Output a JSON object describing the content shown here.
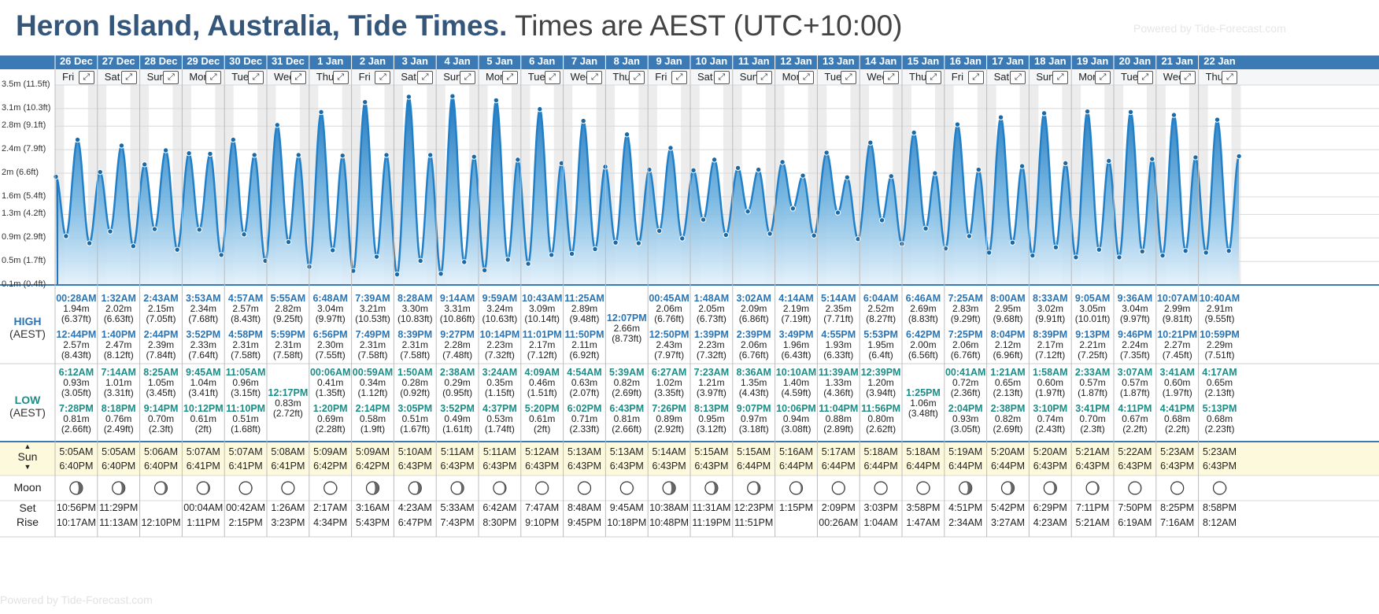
{
  "header": {
    "place_title": "Heron Island, Australia, Tide Times.",
    "tz_text": "Times are AEST (UTC+10:00)",
    "watermark": "Powered by Tide-Forecast.com"
  },
  "row_labels": {
    "high_title": "HIGH",
    "high_tz": "(AEST)",
    "low_title": "LOW",
    "low_tz": "(AEST)",
    "sun": "Sun",
    "moon": "Moon",
    "set": "Set",
    "rise": "Rise"
  },
  "footer": {
    "watermark": "Powered by Tide-Forecast.com"
  },
  "colors": {
    "header_blue": "#3c7ab5",
    "curve_blue": "#2280c8",
    "high_text": "#2d74b0",
    "low_text": "#1e8c86",
    "sun_row_bg": "#fdf9dd"
  },
  "chart_data": {
    "type": "area",
    "title": "Heron Island, Australia, Tide Times.",
    "ylabel": "",
    "y_ticks": [
      "0.1m (0.4ft)",
      "0.5m (1.7ft)",
      "0.9m (2.9ft)",
      "1.3m (4.2ft)",
      "1.6m (5.4ft)",
      "2m (6.6ft)",
      "2.4m (7.9ft)",
      "2.8m (9.1ft)",
      "3.1m (10.3ft)",
      "3.5m (11.5ft)"
    ],
    "y_tick_values": [
      0.1,
      0.5,
      0.9,
      1.3,
      1.6,
      2.0,
      2.4,
      2.8,
      3.1,
      3.5
    ],
    "ylim": [
      0.1,
      3.5
    ],
    "days": [
      {
        "date": "26 Dec",
        "dow": "Fri",
        "high": [
          [
            "00:28AM",
            "1.94m",
            "(6.37ft)"
          ],
          [
            "12:44PM",
            "2.57m",
            "(8.43ft)"
          ]
        ],
        "low": [
          [
            "6:12AM",
            "0.93m",
            "(3.05ft)"
          ],
          [
            "7:28PM",
            "0.81m",
            "(2.66ft)"
          ]
        ],
        "sunrise": "5:05AM",
        "sunset": "6:40PM",
        "moonset": "10:56PM",
        "moonrise": "10:17AM"
      },
      {
        "date": "27 Dec",
        "dow": "Sat",
        "high": [
          [
            "1:32AM",
            "2.02m",
            "(6.63ft)"
          ],
          [
            "1:40PM",
            "2.47m",
            "(8.12ft)"
          ]
        ],
        "low": [
          [
            "7:14AM",
            "1.01m",
            "(3.31ft)"
          ],
          [
            "8:18PM",
            "0.76m",
            "(2.49ft)"
          ]
        ],
        "sunrise": "5:05AM",
        "sunset": "6:40PM",
        "moonset": "11:29PM",
        "moonrise": "11:13AM"
      },
      {
        "date": "28 Dec",
        "dow": "Sun",
        "high": [
          [
            "2:43AM",
            "2.15m",
            "(7.05ft)"
          ],
          [
            "2:44PM",
            "2.39m",
            "(7.84ft)"
          ]
        ],
        "low": [
          [
            "8:25AM",
            "1.05m",
            "(3.45ft)"
          ],
          [
            "9:14PM",
            "0.70m",
            "(2.3ft)"
          ]
        ],
        "sunrise": "5:06AM",
        "sunset": "6:40PM",
        "moonset": "",
        "moonrise": "12:10PM"
      },
      {
        "date": "29 Dec",
        "dow": "Mon",
        "high": [
          [
            "3:53AM",
            "2.34m",
            "(7.68ft)"
          ],
          [
            "3:52PM",
            "2.33m",
            "(7.64ft)"
          ]
        ],
        "low": [
          [
            "9:45AM",
            "1.04m",
            "(3.41ft)"
          ],
          [
            "10:12PM",
            "0.61m",
            "(2ft)"
          ]
        ],
        "sunrise": "5:07AM",
        "sunset": "6:41PM",
        "moonset": "00:04AM",
        "moonrise": "1:11PM"
      },
      {
        "date": "30 Dec",
        "dow": "Tue",
        "high": [
          [
            "4:57AM",
            "2.57m",
            "(8.43ft)"
          ],
          [
            "4:58PM",
            "2.31m",
            "(7.58ft)"
          ]
        ],
        "low": [
          [
            "11:05AM",
            "0.96m",
            "(3.15ft)"
          ],
          [
            "11:10PM",
            "0.51m",
            "(1.68ft)"
          ]
        ],
        "sunrise": "5:07AM",
        "sunset": "6:41PM",
        "moonset": "00:42AM",
        "moonrise": "2:15PM"
      },
      {
        "date": "31 Dec",
        "dow": "Wed",
        "high": [
          [
            "5:55AM",
            "2.82m",
            "(9.25ft)"
          ],
          [
            "5:59PM",
            "2.31m",
            "(7.58ft)"
          ]
        ],
        "low": [
          [
            "12:17PM",
            "0.83m",
            "(2.72ft)"
          ]
        ],
        "sunrise": "5:08AM",
        "sunset": "6:41PM",
        "moonset": "1:26AM",
        "moonrise": "3:23PM"
      },
      {
        "date": "1 Jan",
        "dow": "Thu",
        "high": [
          [
            "6:48AM",
            "3.04m",
            "(9.97ft)"
          ],
          [
            "6:56PM",
            "2.30m",
            "(7.55ft)"
          ]
        ],
        "low": [
          [
            "00:06AM",
            "0.41m",
            "(1.35ft)"
          ],
          [
            "1:20PM",
            "0.69m",
            "(2.28ft)"
          ]
        ],
        "sunrise": "5:09AM",
        "sunset": "6:42PM",
        "moonset": "2:17AM",
        "moonrise": "4:34PM"
      },
      {
        "date": "2 Jan",
        "dow": "Fri",
        "high": [
          [
            "7:39AM",
            "3.21m",
            "(10.53ft)"
          ],
          [
            "7:49PM",
            "2.31m",
            "(7.58ft)"
          ]
        ],
        "low": [
          [
            "00:59AM",
            "0.34m",
            "(1.12ft)"
          ],
          [
            "2:14PM",
            "0.58m",
            "(1.9ft)"
          ]
        ],
        "sunrise": "5:09AM",
        "sunset": "6:42PM",
        "moonset": "3:16AM",
        "moonrise": "5:43PM"
      },
      {
        "date": "3 Jan",
        "dow": "Sat",
        "high": [
          [
            "8:28AM",
            "3.30m",
            "(10.83ft)"
          ],
          [
            "8:39PM",
            "2.31m",
            "(7.58ft)"
          ]
        ],
        "low": [
          [
            "1:50AM",
            "0.28m",
            "(0.92ft)"
          ],
          [
            "3:05PM",
            "0.51m",
            "(1.67ft)"
          ]
        ],
        "sunrise": "5:10AM",
        "sunset": "6:43PM",
        "moonset": "4:23AM",
        "moonrise": "6:47PM"
      },
      {
        "date": "4 Jan",
        "dow": "Sun",
        "high": [
          [
            "9:14AM",
            "3.31m",
            "(10.86ft)"
          ],
          [
            "9:27PM",
            "2.28m",
            "(7.48ft)"
          ]
        ],
        "low": [
          [
            "2:38AM",
            "0.29m",
            "(0.95ft)"
          ],
          [
            "3:52PM",
            "0.49m",
            "(1.61ft)"
          ]
        ],
        "sunrise": "5:11AM",
        "sunset": "6:43PM",
        "moonset": "5:33AM",
        "moonrise": "7:43PM"
      },
      {
        "date": "5 Jan",
        "dow": "Mon",
        "high": [
          [
            "9:59AM",
            "3.24m",
            "(10.63ft)"
          ],
          [
            "10:14PM",
            "2.23m",
            "(7.32ft)"
          ]
        ],
        "low": [
          [
            "3:24AM",
            "0.35m",
            "(1.15ft)"
          ],
          [
            "4:37PM",
            "0.53m",
            "(1.74ft)"
          ]
        ],
        "sunrise": "5:11AM",
        "sunset": "6:43PM",
        "moonset": "6:42AM",
        "moonrise": "8:30PM"
      },
      {
        "date": "6 Jan",
        "dow": "Tue",
        "high": [
          [
            "10:43AM",
            "3.09m",
            "(10.14ft)"
          ],
          [
            "11:01PM",
            "2.17m",
            "(7.12ft)"
          ]
        ],
        "low": [
          [
            "4:09AM",
            "0.46m",
            "(1.51ft)"
          ],
          [
            "5:20PM",
            "0.61m",
            "(2ft)"
          ]
        ],
        "sunrise": "5:12AM",
        "sunset": "6:43PM",
        "moonset": "7:47AM",
        "moonrise": "9:10PM"
      },
      {
        "date": "7 Jan",
        "dow": "Wed",
        "high": [
          [
            "11:25AM",
            "2.89m",
            "(9.48ft)"
          ],
          [
            "11:50PM",
            "2.11m",
            "(6.92ft)"
          ]
        ],
        "low": [
          [
            "4:54AM",
            "0.63m",
            "(2.07ft)"
          ],
          [
            "6:02PM",
            "0.71m",
            "(2.33ft)"
          ]
        ],
        "sunrise": "5:13AM",
        "sunset": "6:43PM",
        "moonset": "8:48AM",
        "moonrise": "9:45PM"
      },
      {
        "date": "8 Jan",
        "dow": "Thu",
        "high": [
          [
            "12:07PM",
            "2.66m",
            "(8.73ft)"
          ]
        ],
        "low": [
          [
            "5:39AM",
            "0.82m",
            "(2.69ft)"
          ],
          [
            "6:43PM",
            "0.81m",
            "(2.66ft)"
          ]
        ],
        "sunrise": "5:13AM",
        "sunset": "6:43PM",
        "moonset": "9:45AM",
        "moonrise": "10:18PM"
      },
      {
        "date": "9 Jan",
        "dow": "Fri",
        "high": [
          [
            "00:45AM",
            "2.06m",
            "(6.76ft)"
          ],
          [
            "12:50PM",
            "2.43m",
            "(7.97ft)"
          ]
        ],
        "low": [
          [
            "6:27AM",
            "1.02m",
            "(3.35ft)"
          ],
          [
            "7:26PM",
            "0.89m",
            "(2.92ft)"
          ]
        ],
        "sunrise": "5:14AM",
        "sunset": "6:43PM",
        "moonset": "10:38AM",
        "moonrise": "10:48PM"
      },
      {
        "date": "10 Jan",
        "dow": "Sat",
        "high": [
          [
            "1:48AM",
            "2.05m",
            "(6.73ft)"
          ],
          [
            "1:39PM",
            "2.23m",
            "(7.32ft)"
          ]
        ],
        "low": [
          [
            "7:23AM",
            "1.21m",
            "(3.97ft)"
          ],
          [
            "8:13PM",
            "0.95m",
            "(3.12ft)"
          ]
        ],
        "sunrise": "5:15AM",
        "sunset": "6:43PM",
        "moonset": "11:31AM",
        "moonrise": "11:19PM"
      },
      {
        "date": "11 Jan",
        "dow": "Sun",
        "high": [
          [
            "3:02AM",
            "2.09m",
            "(6.86ft)"
          ],
          [
            "2:39PM",
            "2.06m",
            "(6.76ft)"
          ]
        ],
        "low": [
          [
            "8:36AM",
            "1.35m",
            "(4.43ft)"
          ],
          [
            "9:07PM",
            "0.97m",
            "(3.18ft)"
          ]
        ],
        "sunrise": "5:15AM",
        "sunset": "6:44PM",
        "moonset": "12:23PM",
        "moonrise": "11:51PM"
      },
      {
        "date": "12 Jan",
        "dow": "Mon",
        "high": [
          [
            "4:14AM",
            "2.19m",
            "(7.19ft)"
          ],
          [
            "3:49PM",
            "1.96m",
            "(6.43ft)"
          ]
        ],
        "low": [
          [
            "10:10AM",
            "1.40m",
            "(4.59ft)"
          ],
          [
            "10:06PM",
            "0.94m",
            "(3.08ft)"
          ]
        ],
        "sunrise": "5:16AM",
        "sunset": "6:44PM",
        "moonset": "1:15PM",
        "moonrise": ""
      },
      {
        "date": "13 Jan",
        "dow": "Tue",
        "high": [
          [
            "5:14AM",
            "2.35m",
            "(7.71ft)"
          ],
          [
            "4:55PM",
            "1.93m",
            "(6.33ft)"
          ]
        ],
        "low": [
          [
            "11:39AM",
            "1.33m",
            "(4.36ft)"
          ],
          [
            "11:04PM",
            "0.88m",
            "(2.89ft)"
          ]
        ],
        "sunrise": "5:17AM",
        "sunset": "6:44PM",
        "moonset": "2:09PM",
        "moonrise": "00:26AM"
      },
      {
        "date": "14 Jan",
        "dow": "Wed",
        "high": [
          [
            "6:04AM",
            "2.52m",
            "(8.27ft)"
          ],
          [
            "5:53PM",
            "1.95m",
            "(6.4ft)"
          ]
        ],
        "low": [
          [
            "12:39PM",
            "1.20m",
            "(3.94ft)"
          ],
          [
            "11:56PM",
            "0.80m",
            "(2.62ft)"
          ]
        ],
        "sunrise": "5:18AM",
        "sunset": "6:44PM",
        "moonset": "3:03PM",
        "moonrise": "1:04AM"
      },
      {
        "date": "15 Jan",
        "dow": "Thu",
        "high": [
          [
            "6:46AM",
            "2.69m",
            "(8.83ft)"
          ],
          [
            "6:42PM",
            "2.00m",
            "(6.56ft)"
          ]
        ],
        "low": [
          [
            "1:25PM",
            "1.06m",
            "(3.48ft)"
          ]
        ],
        "sunrise": "5:18AM",
        "sunset": "6:44PM",
        "moonset": "3:58PM",
        "moonrise": "1:47AM"
      },
      {
        "date": "16 Jan",
        "dow": "Fri",
        "high": [
          [
            "7:25AM",
            "2.83m",
            "(9.29ft)"
          ],
          [
            "7:25PM",
            "2.06m",
            "(6.76ft)"
          ]
        ],
        "low": [
          [
            "00:41AM",
            "0.72m",
            "(2.36ft)"
          ],
          [
            "2:04PM",
            "0.93m",
            "(3.05ft)"
          ]
        ],
        "sunrise": "5:19AM",
        "sunset": "6:44PM",
        "moonset": "4:51PM",
        "moonrise": "2:34AM"
      },
      {
        "date": "17 Jan",
        "dow": "Sat",
        "high": [
          [
            "8:00AM",
            "2.95m",
            "(9.68ft)"
          ],
          [
            "8:04PM",
            "2.12m",
            "(6.96ft)"
          ]
        ],
        "low": [
          [
            "1:21AM",
            "0.65m",
            "(2.13ft)"
          ],
          [
            "2:38PM",
            "0.82m",
            "(2.69ft)"
          ]
        ],
        "sunrise": "5:20AM",
        "sunset": "6:44PM",
        "moonset": "5:42PM",
        "moonrise": "3:27AM"
      },
      {
        "date": "18 Jan",
        "dow": "Sun",
        "high": [
          [
            "8:33AM",
            "3.02m",
            "(9.91ft)"
          ],
          [
            "8:39PM",
            "2.17m",
            "(7.12ft)"
          ]
        ],
        "low": [
          [
            "1:58AM",
            "0.60m",
            "(1.97ft)"
          ],
          [
            "3:10PM",
            "0.74m",
            "(2.43ft)"
          ]
        ],
        "sunrise": "5:20AM",
        "sunset": "6:43PM",
        "moonset": "6:29PM",
        "moonrise": "4:23AM"
      },
      {
        "date": "19 Jan",
        "dow": "Mon",
        "high": [
          [
            "9:05AM",
            "3.05m",
            "(10.01ft)"
          ],
          [
            "9:13PM",
            "2.21m",
            "(7.25ft)"
          ]
        ],
        "low": [
          [
            "2:33AM",
            "0.57m",
            "(1.87ft)"
          ],
          [
            "3:41PM",
            "0.70m",
            "(2.3ft)"
          ]
        ],
        "sunrise": "5:21AM",
        "sunset": "6:43PM",
        "moonset": "7:11PM",
        "moonrise": "5:21AM"
      },
      {
        "date": "20 Jan",
        "dow": "Tue",
        "high": [
          [
            "9:36AM",
            "3.04m",
            "(9.97ft)"
          ],
          [
            "9:46PM",
            "2.24m",
            "(7.35ft)"
          ]
        ],
        "low": [
          [
            "3:07AM",
            "0.57m",
            "(1.87ft)"
          ],
          [
            "4:11PM",
            "0.67m",
            "(2.2ft)"
          ]
        ],
        "sunrise": "5:22AM",
        "sunset": "6:43PM",
        "moonset": "7:50PM",
        "moonrise": "6:19AM"
      },
      {
        "date": "21 Jan",
        "dow": "Wed",
        "high": [
          [
            "10:07AM",
            "2.99m",
            "(9.81ft)"
          ],
          [
            "10:21PM",
            "2.27m",
            "(7.45ft)"
          ]
        ],
        "low": [
          [
            "3:41AM",
            "0.60m",
            "(1.97ft)"
          ],
          [
            "4:41PM",
            "0.68m",
            "(2.2ft)"
          ]
        ],
        "sunrise": "5:23AM",
        "sunset": "6:43PM",
        "moonset": "8:25PM",
        "moonrise": "7:16AM"
      },
      {
        "date": "22 Jan",
        "dow": "Thu",
        "high": [
          [
            "10:40AM",
            "2.91m",
            "(9.55ft)"
          ],
          [
            "10:59PM",
            "2.29m",
            "(7.51ft)"
          ]
        ],
        "low": [
          [
            "4:17AM",
            "0.65m",
            "(2.13ft)"
          ],
          [
            "5:13PM",
            "0.68m",
            "(2.23ft)"
          ]
        ],
        "sunrise": "5:23AM",
        "sunset": "6:43PM",
        "moonset": "8:58PM",
        "moonrise": "8:12AM"
      }
    ]
  }
}
